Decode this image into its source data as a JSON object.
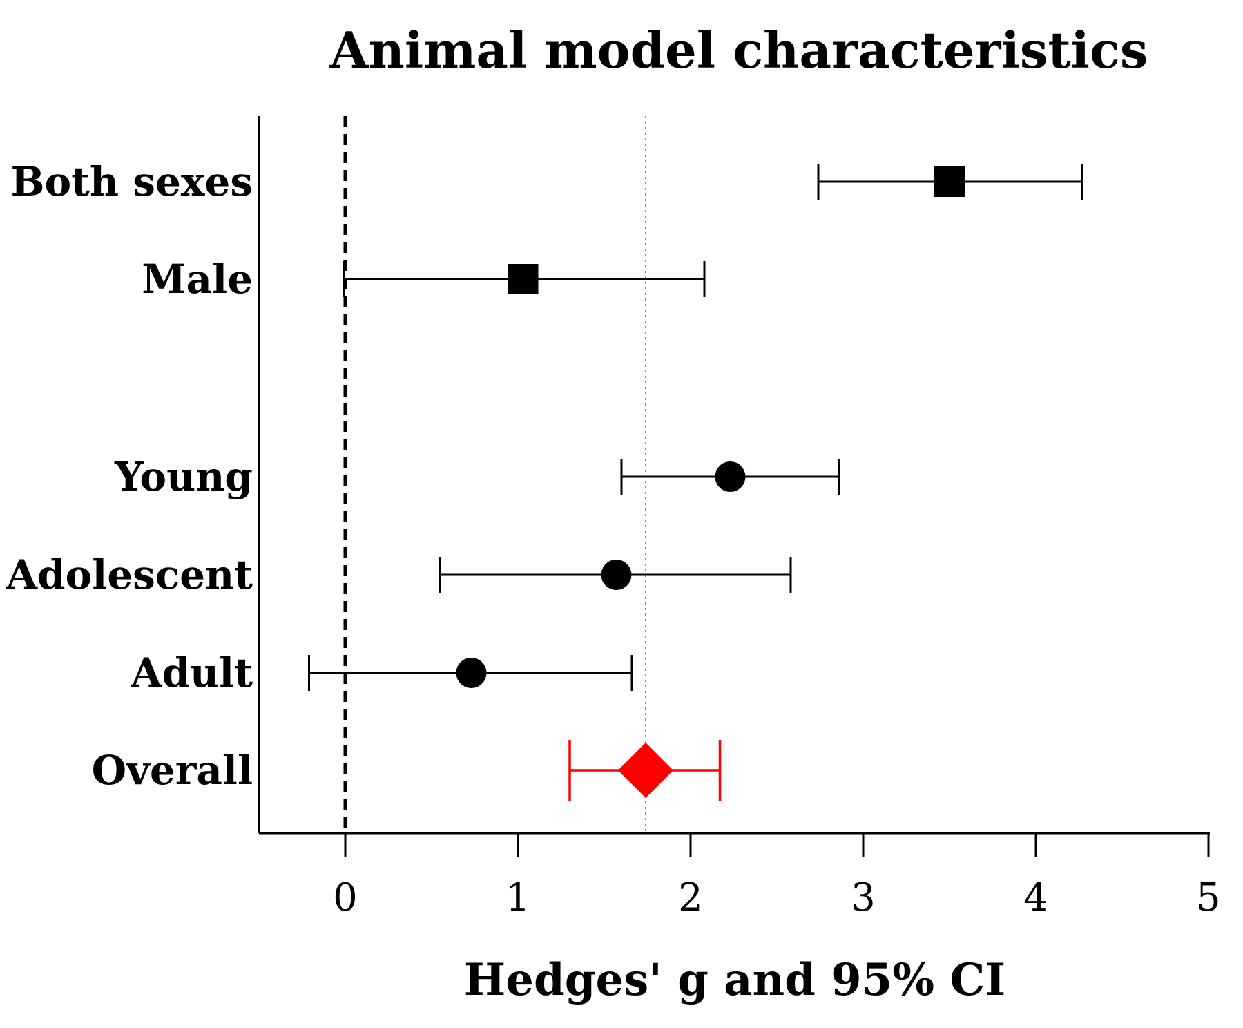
{
  "chart_data": {
    "type": "forest",
    "title": "Animal model characteristics",
    "xlabel": "Hedges' g and 95% CI",
    "ylabel": "",
    "xlim": [
      -0.5,
      5
    ],
    "xticks": [
      "0",
      "1",
      "2",
      "3",
      "4",
      "5"
    ],
    "reference_line": 0,
    "overall_line": 1.74,
    "rows": [
      {
        "label": "Both sexes",
        "estimate": 3.5,
        "lower": 2.74,
        "upper": 4.27,
        "marker": "square",
        "color": "#000000"
      },
      {
        "label": "Male",
        "estimate": 1.03,
        "lower": -0.01,
        "upper": 2.08,
        "marker": "square",
        "color": "#000000"
      },
      {
        "label": "Young",
        "estimate": 2.23,
        "lower": 1.6,
        "upper": 2.86,
        "marker": "circle",
        "color": "#000000"
      },
      {
        "label": "Adolescent",
        "estimate": 1.57,
        "lower": 0.55,
        "upper": 2.58,
        "marker": "circle",
        "color": "#000000"
      },
      {
        "label": "Adult",
        "estimate": 0.73,
        "lower": -0.21,
        "upper": 1.66,
        "marker": "circle",
        "color": "#000000"
      },
      {
        "label": "Overall",
        "estimate": 1.74,
        "lower": 1.3,
        "upper": 2.17,
        "marker": "diamond",
        "color": "#ff0000"
      }
    ],
    "overall_line_color": "#e06060"
  }
}
